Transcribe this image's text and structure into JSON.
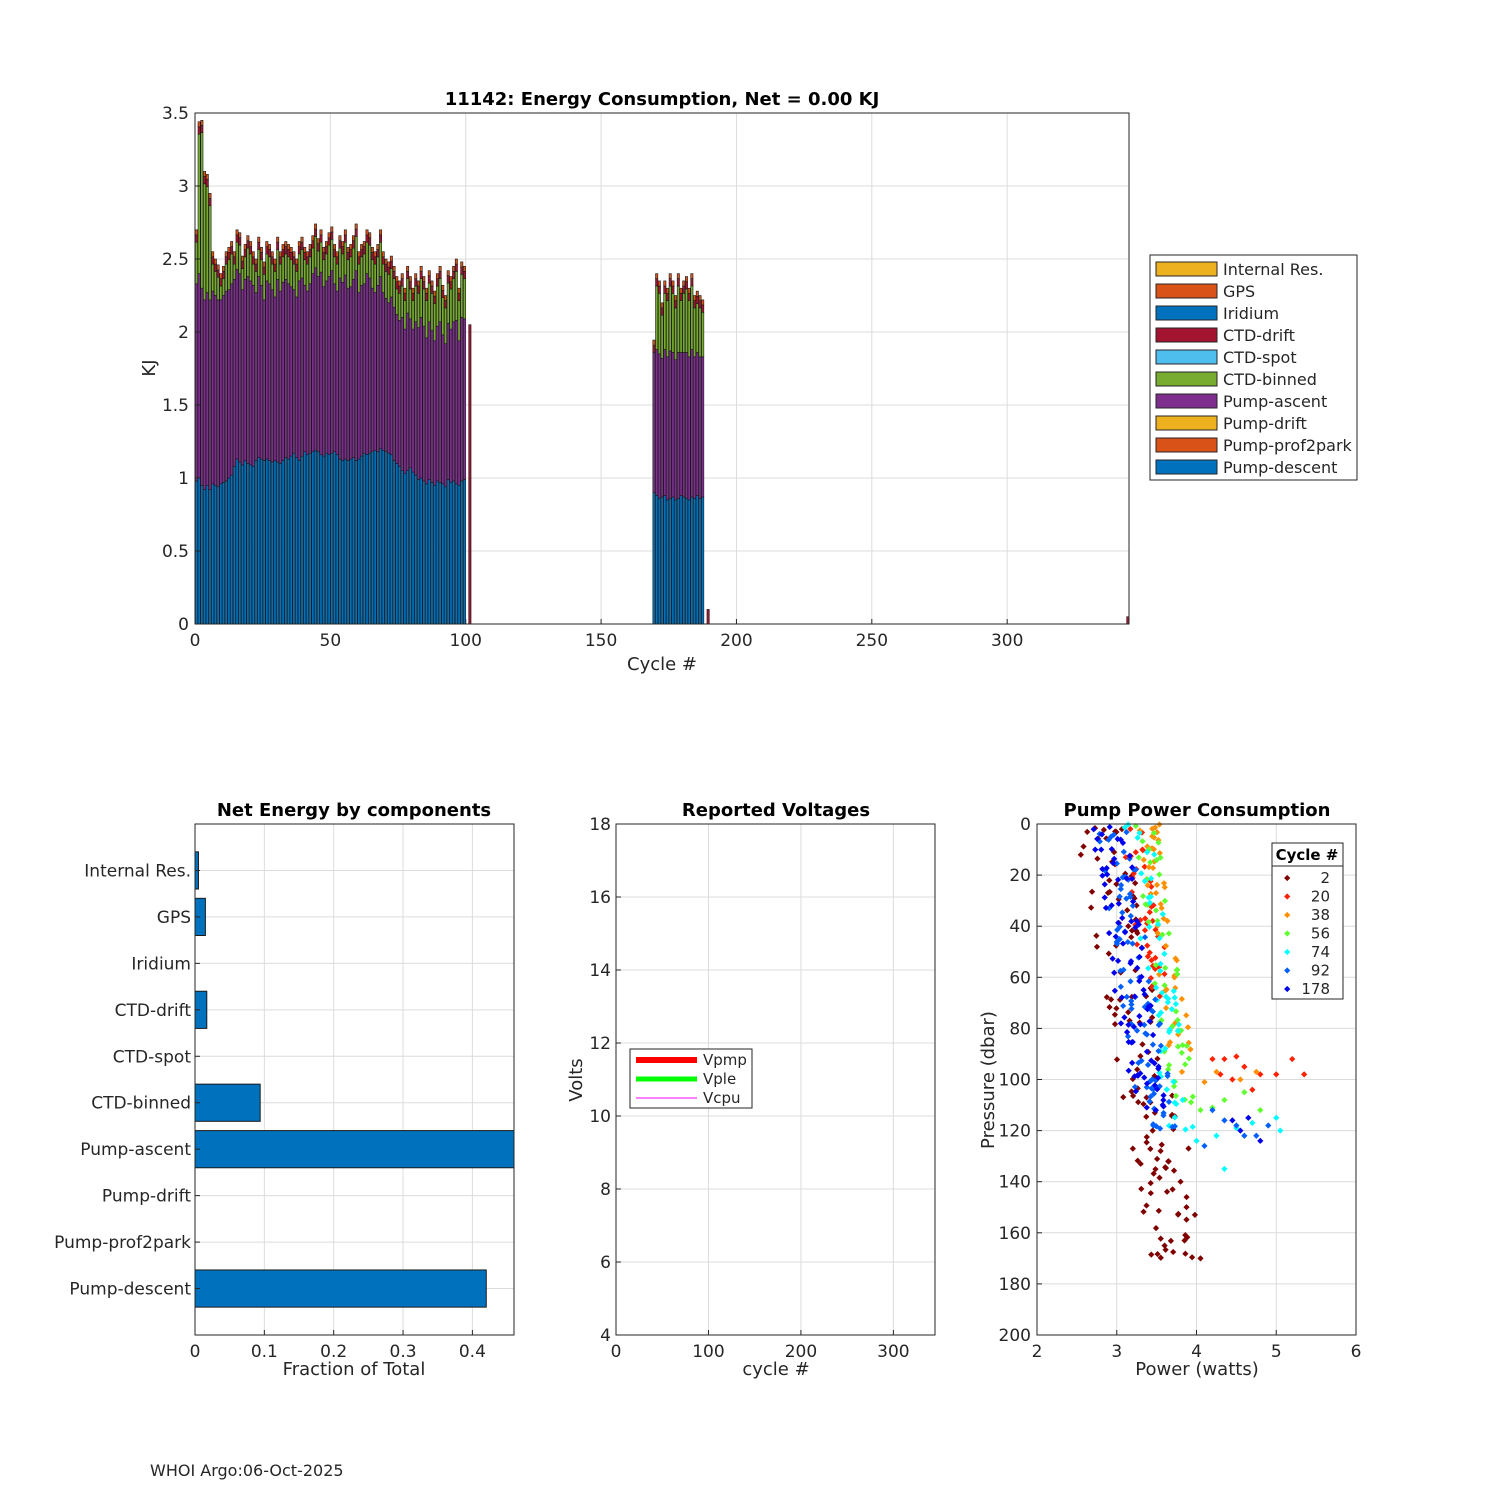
{
  "footer": "WHOI Argo:06-Oct-2025",
  "colors": {
    "internal": "#EDB120",
    "gps": "#D95319",
    "iridium": "#0072BD",
    "ctd_drift": "#A2142F",
    "ctd_spot": "#4DBEEE",
    "ctd_binned": "#77AC30",
    "pump_ascent": "#7E2F8E",
    "pump_drift": "#EDB120",
    "pump_prof2park": "#D95319",
    "pump_descent": "#0072BD",
    "vpmp": "#ff0000",
    "vple": "#00ff00",
    "vcpu": "#ff00ff"
  },
  "chart_data": [
    {
      "id": "energy",
      "type": "bar",
      "stacked": true,
      "title": "11142: Energy Consumption,  Net =   0.00 KJ",
      "xlabel": "Cycle #",
      "ylabel": "KJ",
      "xlim": [
        0,
        345
      ],
      "ylim": [
        0,
        3.5
      ],
      "xticks": [
        0,
        50,
        100,
        150,
        200,
        250,
        300
      ],
      "yticks": [
        0,
        0.5,
        1,
        1.5,
        2,
        2.5,
        3,
        3.5
      ],
      "ytick_labels": [
        "0",
        "0.5",
        "1",
        "1.5",
        "2",
        "2.5",
        "3",
        "3.5"
      ],
      "grid": true,
      "legend_position": "outside-right",
      "legend": [
        "Internal Res.",
        "GPS",
        "Iridium",
        "CTD-drift",
        "CTD-spot",
        "CTD-binned",
        "Pump-ascent",
        "Pump-drift",
        "Pump-prof2park",
        "Pump-descent"
      ],
      "stack_order": [
        "Pump-descent",
        "Pump-ascent",
        "CTD-binned",
        "CTD-drift",
        "GPS"
      ],
      "cycles_a": [
        0,
        1,
        2,
        3,
        4,
        5,
        6,
        7,
        8,
        9,
        10,
        11,
        12,
        13,
        14,
        15,
        16,
        17,
        18,
        19,
        20,
        21,
        22,
        23,
        24,
        25,
        26,
        27,
        28,
        29,
        30,
        31,
        32,
        33,
        34,
        35,
        36,
        37,
        38,
        39,
        40,
        41,
        42,
        43,
        44,
        45,
        46,
        47,
        48,
        49,
        50,
        51,
        52,
        53,
        54,
        55,
        56,
        57,
        58,
        59,
        60,
        61,
        62,
        63,
        64,
        65,
        66,
        67,
        68,
        69,
        70,
        71,
        72,
        73,
        74,
        75,
        76,
        77,
        78,
        79,
        80,
        81,
        82,
        83,
        84,
        85,
        86,
        87,
        88,
        89,
        90,
        91,
        92,
        93,
        94,
        95,
        96,
        97,
        98,
        99
      ],
      "totals_a": [
        2.7,
        3.44,
        3.45,
        3.1,
        3.08,
        2.95,
        2.55,
        2.5,
        2.46,
        2.4,
        2.45,
        2.55,
        2.58,
        2.62,
        2.55,
        2.7,
        2.68,
        2.52,
        2.6,
        2.66,
        2.62,
        2.55,
        2.5,
        2.65,
        2.58,
        2.48,
        2.62,
        2.6,
        2.55,
        2.5,
        2.65,
        2.55,
        2.6,
        2.62,
        2.6,
        2.58,
        2.55,
        2.5,
        2.62,
        2.65,
        2.58,
        2.55,
        2.6,
        2.66,
        2.74,
        2.64,
        2.7,
        2.58,
        2.62,
        2.68,
        2.72,
        2.6,
        2.55,
        2.66,
        2.62,
        2.7,
        2.58,
        2.6,
        2.66,
        2.74,
        2.55,
        2.6,
        2.62,
        2.7,
        2.68,
        2.58,
        2.55,
        2.6,
        2.7,
        2.55,
        2.5,
        2.48,
        2.52,
        2.45,
        2.38,
        2.35,
        2.4,
        2.3,
        2.45,
        2.38,
        2.3,
        2.4,
        2.35,
        2.45,
        2.38,
        2.3,
        2.42,
        2.35,
        2.28,
        2.4,
        2.45,
        2.32,
        2.25,
        2.42,
        2.38,
        2.45,
        2.5,
        2.3,
        2.48,
        2.45
      ],
      "descent_a": [
        0.98,
        1.0,
        0.95,
        0.92,
        0.95,
        0.92,
        0.96,
        0.95,
        0.94,
        0.96,
        0.97,
        0.98,
        1.0,
        1.02,
        1.08,
        1.13,
        1.11,
        1.09,
        1.12,
        1.1,
        1.09,
        1.08,
        1.12,
        1.14,
        1.13,
        1.12,
        1.13,
        1.12,
        1.11,
        1.12,
        1.11,
        1.1,
        1.12,
        1.14,
        1.13,
        1.15,
        1.17,
        1.14,
        1.12,
        1.15,
        1.18,
        1.16,
        1.17,
        1.18,
        1.19,
        1.18,
        1.16,
        1.15,
        1.17,
        1.16,
        1.17,
        1.18,
        1.16,
        1.13,
        1.12,
        1.13,
        1.12,
        1.13,
        1.14,
        1.12,
        1.13,
        1.15,
        1.17,
        1.16,
        1.17,
        1.18,
        1.19,
        1.18,
        1.2,
        1.19,
        1.18,
        1.17,
        1.16,
        1.12,
        1.1,
        1.08,
        1.05,
        1.03,
        1.05,
        1.07,
        1.04,
        1.02,
        0.99,
        1.0,
        0.98,
        0.96,
        0.99,
        0.97,
        0.95,
        0.98,
        0.97,
        0.96,
        0.94,
        0.99,
        0.97,
        0.98,
        0.96,
        0.95,
        0.98,
        0.99
      ],
      "ascent_a": [
        1.35,
        1.4,
        1.35,
        1.3,
        1.32,
        1.3,
        1.32,
        1.3,
        1.28,
        1.26,
        1.28,
        1.3,
        1.29,
        1.31,
        1.28,
        1.3,
        1.29,
        1.2,
        1.24,
        1.28,
        1.26,
        1.24,
        1.15,
        1.24,
        1.19,
        1.1,
        1.22,
        1.21,
        1.18,
        1.12,
        1.25,
        1.18,
        1.22,
        1.22,
        1.2,
        1.16,
        1.12,
        1.1,
        1.23,
        1.22,
        1.14,
        1.12,
        1.16,
        1.22,
        1.25,
        1.2,
        1.25,
        1.16,
        1.18,
        1.22,
        1.25,
        1.15,
        1.12,
        1.24,
        1.22,
        1.26,
        1.18,
        1.18,
        1.22,
        1.3,
        1.14,
        1.17,
        1.16,
        1.24,
        1.2,
        1.12,
        1.08,
        1.14,
        1.18,
        1.08,
        1.05,
        1.03,
        1.08,
        1.05,
        1.02,
        1.0,
        1.05,
        0.99,
        1.08,
        1.02,
        0.98,
        1.05,
        1.04,
        1.1,
        1.06,
        1.0,
        1.08,
        1.04,
        0.99,
        1.06,
        1.1,
        1.02,
        0.98,
        1.07,
        1.05,
        1.09,
        1.12,
        0.99,
        1.12,
        1.1
      ],
      "cycles_b": [
        169,
        170,
        171,
        172,
        173,
        174,
        175,
        176,
        177,
        178,
        179,
        180,
        181,
        182,
        183,
        184,
        185,
        186,
        187
      ],
      "totals_b": [
        1.9,
        2.4,
        2.35,
        2.2,
        2.35,
        2.3,
        2.4,
        2.35,
        2.25,
        2.4,
        2.3,
        2.35,
        2.38,
        2.3,
        2.4,
        2.25,
        2.28,
        2.25,
        2.22
      ],
      "descent_b": [
        0.9,
        0.88,
        0.86,
        0.87,
        0.88,
        0.85,
        0.86,
        0.87,
        0.85,
        0.86,
        0.88,
        0.87,
        0.86,
        0.85,
        0.87,
        0.86,
        0.88,
        0.86,
        0.87
      ],
      "ascent_b": [
        0.96,
        1.0,
        0.99,
        0.95,
        1.0,
        0.98,
        1.01,
        0.99,
        0.96,
        1.0,
        0.98,
        0.99,
        1.0,
        0.98,
        1.01,
        0.97,
        0.98,
        0.97,
        0.96
      ],
      "extra_cycles": [
        101,
        189,
        345
      ],
      "extra_totals": [
        2.05,
        0.1,
        0.05
      ]
    },
    {
      "id": "components",
      "type": "bar",
      "orientation": "horizontal",
      "title": "Net Energy by components",
      "xlabel": "Fraction of Total",
      "xlim": [
        0,
        0.46
      ],
      "xticks": [
        0,
        0.1,
        0.2,
        0.3,
        0.4
      ],
      "xtick_labels": [
        "0",
        "0.1",
        "0.2",
        "0.3",
        "0.4"
      ],
      "grid": true,
      "categories": [
        "Internal Res.",
        "GPS",
        "Iridium",
        "CTD-drift",
        "CTD-spot",
        "CTD-binned",
        "Pump-ascent",
        "Pump-drift",
        "Pump-prof2park",
        "Pump-descent"
      ],
      "values": [
        0.005,
        0.015,
        0,
        0.017,
        0,
        0.094,
        0.47,
        0,
        0,
        0.42
      ]
    },
    {
      "id": "voltages",
      "type": "line",
      "title": "Reported Voltages",
      "xlabel": "cycle #",
      "ylabel": "Volts",
      "xlim": [
        0,
        345
      ],
      "ylim": [
        4,
        18
      ],
      "xticks": [
        0,
        100,
        200,
        300
      ],
      "yticks": [
        4,
        6,
        8,
        10,
        12,
        14,
        16,
        18
      ],
      "grid": true,
      "legend_position": "left-middle",
      "series": [
        {
          "name": "Vpmp",
          "values": []
        },
        {
          "name": "Vple",
          "values": []
        },
        {
          "name": "Vcpu",
          "values": []
        }
      ]
    },
    {
      "id": "pump",
      "type": "scatter",
      "title": "Pump Power Consumption",
      "xlabel": "Power (watts)",
      "ylabel": "Pressure (dbar)",
      "xlim": [
        2,
        6
      ],
      "ylim": [
        0,
        200
      ],
      "y_reversed": true,
      "xticks": [
        2,
        3,
        4,
        5,
        6
      ],
      "yticks": [
        0,
        20,
        40,
        60,
        80,
        100,
        120,
        140,
        160,
        180,
        200
      ],
      "grid": true,
      "legend_title": "Cycle #",
      "legend_position": "top-right",
      "series": [
        {
          "name": "2",
          "color": "#800000",
          "x_center": 2.85,
          "slope": 0.0055,
          "spread": 0.32,
          "pmax": 170,
          "n": 120,
          "tail": [
            [
              3.6,
              165
            ],
            [
              3.85,
              163
            ],
            [
              4.05,
              170
            ],
            [
              3.98,
              153
            ],
            [
              3.7,
              143
            ],
            [
              3.8,
              140
            ],
            [
              3.3,
              133
            ],
            [
              3.55,
              128
            ],
            [
              3.9,
              127
            ],
            [
              3.45,
              120
            ]
          ]
        },
        {
          "name": "20",
          "color": "#ff2000",
          "x_center": 3.25,
          "slope": 0.0048,
          "spread": 0.18,
          "pmax": 70,
          "n": 40,
          "tail": [
            [
              4.2,
              92
            ],
            [
              4.35,
              92
            ],
            [
              4.5,
              91
            ],
            [
              4.6,
              95
            ],
            [
              4.8,
              98
            ],
            [
              5.2,
              92
            ],
            [
              5.35,
              98
            ],
            [
              5.0,
              98
            ],
            [
              4.7,
              104
            ],
            [
              4.45,
              100
            ],
            [
              4.3,
              98
            ]
          ]
        },
        {
          "name": "38",
          "color": "#ff9000",
          "x_center": 3.45,
          "slope": 0.0045,
          "spread": 0.14,
          "pmax": 98,
          "n": 50,
          "tail": [
            [
              4.1,
              101
            ],
            [
              4.25,
              97
            ],
            [
              4.55,
              100
            ],
            [
              4.75,
              97
            ]
          ]
        },
        {
          "name": "56",
          "color": "#60ff30",
          "x_center": 3.4,
          "slope": 0.0045,
          "spread": 0.16,
          "pmax": 110,
          "n": 50,
          "tail": [
            [
              4.05,
              112
            ],
            [
              4.2,
              111
            ],
            [
              4.35,
              108
            ],
            [
              4.6,
              105
            ],
            [
              4.8,
              112
            ]
          ]
        },
        {
          "name": "74",
          "color": "#00ffff",
          "x_center": 3.3,
          "slope": 0.0045,
          "spread": 0.18,
          "pmax": 120,
          "n": 50,
          "tail": [
            [
              4.25,
              122
            ],
            [
              4.5,
              119
            ],
            [
              4.7,
              117
            ],
            [
              5.0,
              115
            ],
            [
              5.05,
              120
            ],
            [
              4.35,
              135
            ],
            [
              4.0,
              124
            ]
          ]
        },
        {
          "name": "92",
          "color": "#0060ff",
          "x_center": 3.0,
          "slope": 0.0048,
          "spread": 0.22,
          "pmax": 120,
          "n": 90,
          "tail": [
            [
              4.2,
              112
            ],
            [
              4.35,
              116
            ],
            [
              4.5,
              118
            ],
            [
              4.6,
              122
            ],
            [
              4.75,
              122
            ],
            [
              4.9,
              118
            ],
            [
              4.1,
              126
            ]
          ]
        },
        {
          "name": "178",
          "color": "#0000ee",
          "x_center": 2.95,
          "slope": 0.0045,
          "spread": 0.22,
          "pmax": 115,
          "n": 90,
          "tail": [
            [
              4.45,
              116
            ],
            [
              4.55,
              120
            ],
            [
              4.8,
              124
            ],
            [
              4.65,
              115
            ]
          ]
        }
      ]
    }
  ]
}
